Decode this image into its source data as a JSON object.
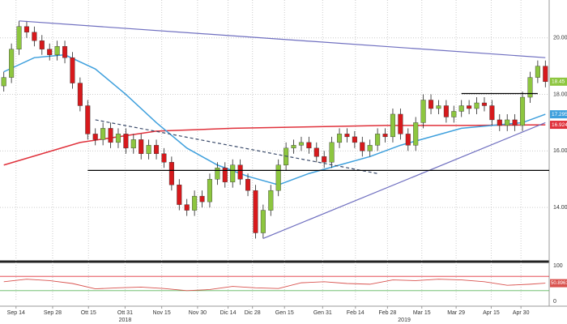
{
  "chart_data": {
    "type": "candlestick",
    "xlim": [
      -0.5,
      71.5
    ],
    "ylim": [
      12.14,
      21.34
    ],
    "yticks": [
      {
        "value": 14,
        "label": "14.00"
      },
      {
        "value": 16,
        "label": "16.00"
      },
      {
        "value": 18,
        "label": "18.00"
      },
      {
        "value": 20,
        "label": "20.00"
      }
    ],
    "xticks": [
      {
        "value": 1.6,
        "label": "Sep 14"
      },
      {
        "value": 6.4,
        "label": "Sep 28"
      },
      {
        "value": 11.1,
        "label": "Ott 15"
      },
      {
        "value": 15.9,
        "label": "Ott 31"
      },
      {
        "value": 20.7,
        "label": "Nov 15"
      },
      {
        "value": 25.4,
        "label": "Nov 30"
      },
      {
        "value": 29.4,
        "label": "Dic 14"
      },
      {
        "value": 32.6,
        "label": "Dic 28"
      },
      {
        "value": 36.8,
        "label": "Gen 15"
      },
      {
        "value": 41.8,
        "label": "Gen 31"
      },
      {
        "value": 46.1,
        "label": "Feb 14"
      },
      {
        "value": 50.3,
        "label": "Feb 28"
      },
      {
        "value": 54.8,
        "label": "Mar 15"
      },
      {
        "value": 59.3,
        "label": "Mar 29"
      },
      {
        "value": 63.9,
        "label": "Apr 15"
      },
      {
        "value": 67.8,
        "label": "Apr 30"
      }
    ],
    "year_labels": [
      {
        "value": 15.9,
        "label": "2018"
      },
      {
        "value": 52.5,
        "label": "2019"
      }
    ],
    "grid": true,
    "up_color": "#8dc63f",
    "down_color": "#d7191c",
    "open": [
      18.3,
      18.6,
      19.6,
      20.4,
      20.2,
      19.9,
      19.6,
      19.4,
      19.7,
      19.3,
      18.4,
      17.6,
      16.6,
      16.4,
      16.8,
      16.3,
      16.6,
      16.1,
      16.4,
      15.9,
      16.2,
      15.9,
      15.6,
      14.8,
      14.1,
      13.9,
      14.4,
      14.2,
      15.0,
      15.4,
      14.9,
      15.5,
      15.0,
      14.6,
      13.1,
      13.9,
      14.6,
      15.5,
      16.1,
      16.2,
      16.3,
      16.1,
      15.8,
      15.6,
      16.3,
      16.6,
      16.5,
      16.3,
      16.0,
      16.2,
      16.6,
      16.5,
      17.3,
      16.6,
      16.2,
      17.0,
      17.8,
      17.5,
      17.6,
      17.2,
      17.4,
      17.6,
      17.5,
      17.7,
      17.6,
      17.1,
      16.9,
      17.1,
      16.9,
      17.9,
      18.6,
      19.0
    ],
    "high": [
      18.8,
      19.8,
      20.6,
      20.6,
      20.4,
      20.1,
      19.8,
      19.9,
      19.9,
      19.5,
      18.6,
      17.8,
      16.8,
      17.0,
      17.0,
      16.8,
      16.8,
      16.6,
      16.6,
      16.4,
      16.4,
      16.1,
      15.8,
      15.0,
      14.3,
      14.6,
      14.6,
      15.2,
      15.6,
      15.6,
      15.7,
      15.7,
      15.2,
      14.8,
      14.1,
      14.8,
      15.7,
      16.3,
      16.4,
      16.5,
      16.5,
      16.3,
      16.0,
      16.5,
      16.8,
      16.8,
      16.7,
      16.5,
      16.4,
      16.8,
      16.8,
      17.5,
      17.5,
      16.8,
      17.2,
      18.0,
      18.0,
      17.8,
      17.8,
      17.6,
      17.8,
      17.8,
      17.9,
      17.9,
      17.8,
      17.3,
      17.3,
      17.3,
      18.1,
      18.8,
      19.2,
      19.2
    ],
    "low": [
      18.1,
      18.4,
      19.4,
      20.0,
      19.7,
      19.4,
      19.2,
      19.2,
      19.1,
      18.2,
      17.4,
      16.4,
      16.2,
      16.2,
      16.1,
      16.1,
      15.9,
      15.9,
      15.7,
      15.7,
      15.7,
      15.4,
      14.6,
      13.9,
      13.7,
      13.7,
      14.0,
      14.0,
      14.8,
      14.7,
      14.7,
      14.8,
      14.4,
      12.9,
      12.9,
      13.7,
      14.4,
      15.3,
      15.9,
      16.0,
      15.9,
      15.6,
      15.4,
      15.4,
      16.1,
      16.3,
      16.1,
      15.8,
      15.8,
      16.0,
      16.3,
      16.3,
      16.4,
      16.0,
      16.0,
      16.8,
      17.3,
      17.3,
      17.0,
      17.0,
      17.2,
      17.3,
      17.3,
      17.4,
      16.9,
      16.7,
      16.7,
      16.7,
      16.7,
      17.7,
      18.4,
      18.25
    ],
    "close": [
      18.6,
      19.6,
      20.4,
      20.2,
      19.9,
      19.6,
      19.4,
      19.7,
      19.3,
      18.4,
      17.6,
      16.6,
      16.4,
      16.8,
      16.3,
      16.6,
      16.1,
      16.4,
      15.9,
      16.2,
      15.9,
      15.6,
      14.8,
      14.1,
      13.9,
      14.4,
      14.2,
      15.0,
      15.4,
      14.9,
      15.5,
      15.0,
      14.6,
      13.1,
      13.9,
      14.6,
      15.5,
      16.1,
      16.2,
      16.3,
      16.1,
      15.8,
      15.6,
      16.3,
      16.6,
      16.5,
      16.3,
      16.0,
      16.2,
      16.6,
      16.5,
      17.3,
      16.6,
      16.2,
      17.0,
      17.8,
      17.5,
      17.6,
      17.2,
      17.4,
      17.6,
      17.5,
      17.7,
      17.6,
      17.1,
      16.9,
      17.1,
      16.9,
      17.9,
      18.6,
      19.0,
      18.45
    ],
    "last_color": "#8dc63f",
    "series": [
      {
        "color": "#3fa0dd",
        "x": [
          0,
          4,
          8,
          12,
          16,
          20,
          24,
          28,
          32,
          36,
          40,
          44,
          48,
          52,
          56,
          60,
          64,
          68,
          71
        ],
        "values": [
          18.8,
          19.3,
          19.4,
          18.9,
          18.0,
          17.0,
          16.1,
          15.5,
          15.1,
          14.8,
          15.2,
          15.5,
          15.8,
          16.2,
          16.5,
          16.8,
          16.9,
          17.0,
          17.2958
        ]
      },
      {
        "color": "#e0313b",
        "x": [
          0,
          10,
          20,
          30,
          40,
          50,
          60,
          71
        ],
        "values": [
          15.5,
          16.3,
          16.7,
          16.8,
          16.85,
          16.9,
          16.9,
          16.9244
        ]
      }
    ],
    "trendlines": [
      {
        "x": [
          2,
          71
        ],
        "y": [
          20.6,
          19.3
        ],
        "color": "#6f6fc0",
        "dash": false
      },
      {
        "x": [
          34,
          71
        ],
        "y": [
          12.9,
          17.0
        ],
        "color": "#6f6fc0",
        "dash": false
      },
      {
        "x": [
          12,
          49
        ],
        "y": [
          17.1,
          15.2
        ],
        "color": "#3a4a6a",
        "dash": true
      },
      {
        "x": [
          11,
          71.5
        ],
        "y": [
          15.31,
          15.31
        ],
        "color": "#000000",
        "dash": false
      },
      {
        "x": [
          60,
          70
        ],
        "y": [
          18.03,
          18.03
        ],
        "color": "#000000",
        "dash": false
      }
    ],
    "rsi": {
      "ylim": [
        0,
        100
      ],
      "yticks": [
        0,
        100
      ],
      "upper": 70,
      "lower": 30,
      "upper_color": "#e0313b",
      "lower_color": "#5cb85c",
      "color": "#d9534f",
      "x": [
        0,
        3,
        6,
        9,
        12,
        15,
        18,
        21,
        24,
        27,
        30,
        33,
        36,
        39,
        42,
        45,
        48,
        51,
        54,
        57,
        60,
        63,
        66,
        69,
        71
      ],
      "values": [
        55,
        62,
        58,
        50,
        35,
        38,
        40,
        36,
        30,
        33,
        42,
        38,
        36,
        52,
        55,
        50,
        48,
        60,
        58,
        62,
        60,
        55,
        45,
        48,
        50.8961
      ]
    }
  }
}
